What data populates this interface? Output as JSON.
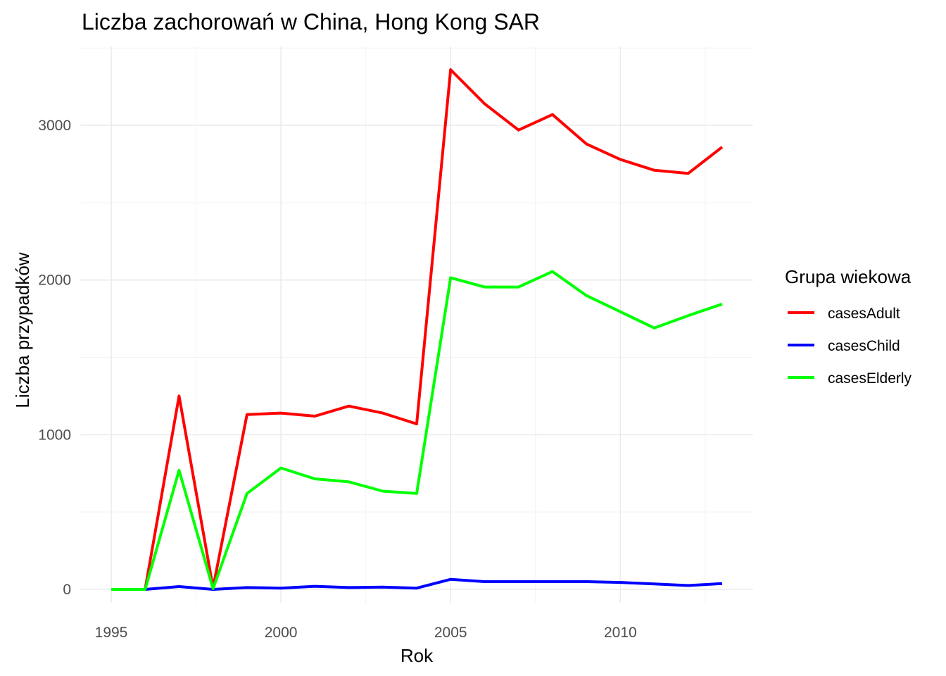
{
  "chart_data": {
    "type": "line",
    "title": "Liczba zachorowań w China, Hong Kong SAR",
    "xlabel": "Rok",
    "ylabel": "Liczba przypadków",
    "xlim": [
      1995,
      2013
    ],
    "ylim": [
      0,
      3360
    ],
    "x_ticks": [
      1995,
      2000,
      2005,
      2010
    ],
    "y_ticks": [
      0,
      1000,
      2000,
      3000
    ],
    "grid": true,
    "legend": {
      "title": "Grupa wiekowa",
      "position": "right"
    },
    "x": [
      1995,
      1996,
      1997,
      1998,
      1999,
      2000,
      2001,
      2002,
      2003,
      2004,
      2005,
      2006,
      2007,
      2008,
      2009,
      2010,
      2011,
      2012,
      2013
    ],
    "series": [
      {
        "name": "casesAdult",
        "color": "#ff0000",
        "values": [
          0,
          0,
          1250,
          10,
          1130,
          1140,
          1120,
          1185,
          1140,
          1070,
          3360,
          3140,
          2970,
          3070,
          2880,
          2780,
          2710,
          2690,
          2860
        ]
      },
      {
        "name": "casesChild",
        "color": "#0000ff",
        "values": [
          0,
          0,
          18,
          0,
          12,
          8,
          20,
          12,
          15,
          8,
          65,
          50,
          50,
          50,
          50,
          45,
          35,
          25,
          38
        ]
      },
      {
        "name": "casesElderly",
        "color": "#00ff00",
        "values": [
          0,
          0,
          770,
          5,
          620,
          785,
          715,
          695,
          635,
          620,
          2015,
          1955,
          1955,
          2055,
          1900,
          1795,
          1690,
          1770,
          1845
        ]
      }
    ]
  }
}
